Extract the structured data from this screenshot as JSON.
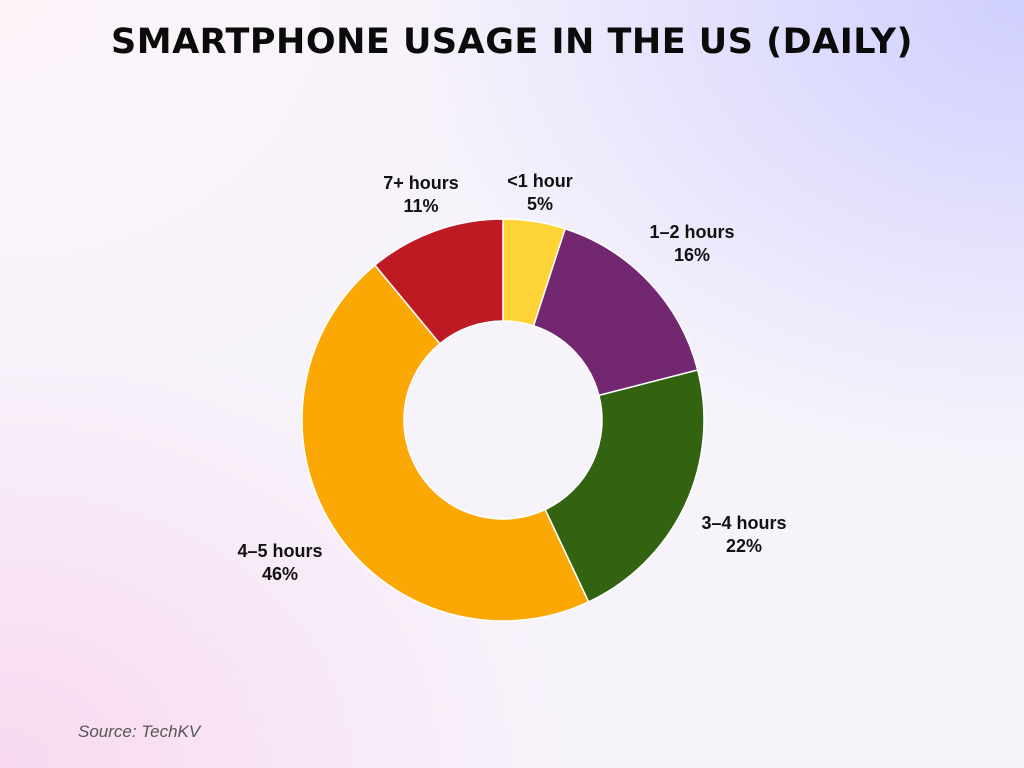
{
  "chart_data": {
    "type": "pie",
    "title": "SMARTPHONE USAGE IN THE US (DAILY)",
    "donut": true,
    "start_angle_deg": 0,
    "direction": "clockwise",
    "slices": [
      {
        "label": "<1 hour",
        "value": 5,
        "value_label": "5%",
        "color": "#FDD335"
      },
      {
        "label": "1–2 hours",
        "value": 16,
        "value_label": "16%",
        "color": "#732770"
      },
      {
        "label": "3–4 hours",
        "value": 22,
        "value_label": "22%",
        "color": "#336211"
      },
      {
        "label": "4–5 hours",
        "value": 46,
        "value_label": "46%",
        "color": "#FBA704"
      },
      {
        "label": "7+ hours",
        "value": 11,
        "value_label": "11%",
        "color": "#BE1A24"
      }
    ]
  },
  "source": "Source: TechKV"
}
